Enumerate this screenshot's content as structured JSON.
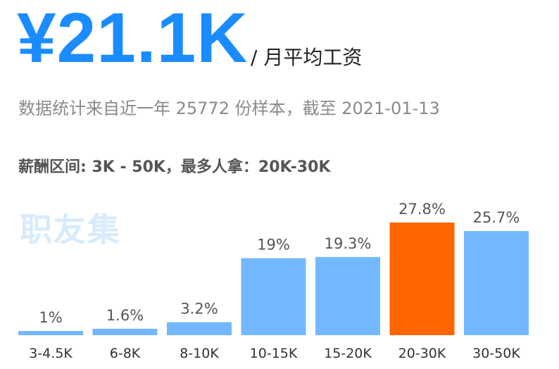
{
  "header": {
    "salary_value": "¥21.1K",
    "salary_unit": "/ 月平均工资",
    "sample_info": "数据统计来自近一年 25772 份样本，截至 2021-01-13",
    "range_info": "薪酬区间: 3K - 50K，最多人拿：20K-30K"
  },
  "watermark": "职友集",
  "colors": {
    "accent": "#1a8cff",
    "bar": "#73b8ff",
    "highlight_bar": "#ff6600"
  },
  "chart_data": {
    "type": "bar",
    "categories": [
      "3-4.5K",
      "6-8K",
      "8-10K",
      "10-15K",
      "15-20K",
      "20-30K",
      "30-50K"
    ],
    "values": [
      1,
      1.6,
      3.2,
      19,
      19.3,
      27.8,
      25.7
    ],
    "value_labels": [
      "1%",
      "1.6%",
      "3.2%",
      "19%",
      "19.3%",
      "27.8%",
      "25.7%"
    ],
    "highlight_index": 5,
    "ylim": [
      0,
      27.8
    ]
  }
}
